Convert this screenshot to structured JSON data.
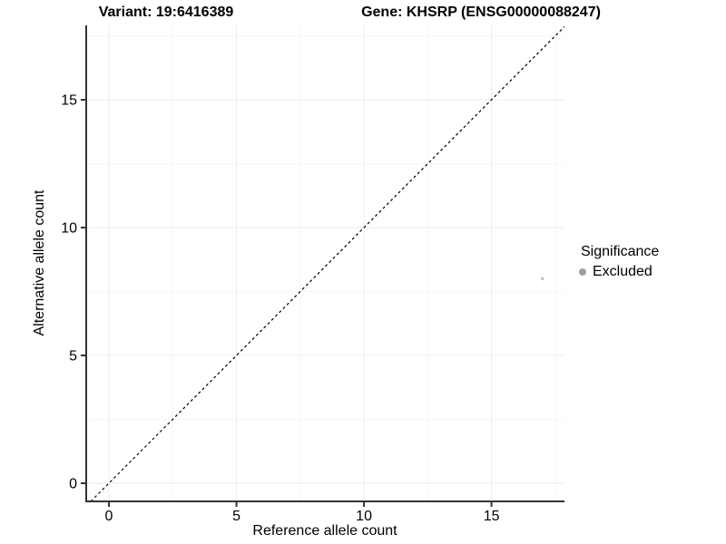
{
  "chart_data": {
    "type": "scatter",
    "title_left": "Variant: 19:6416389",
    "title_right": "Gene: KHSRP (ENSG00000088247)",
    "xlabel": "Reference allele count",
    "ylabel": "Alternative allele count",
    "xlim": [
      -0.89,
      17.86
    ],
    "ylim": [
      -0.71,
      17.91
    ],
    "x_ticks": [
      0,
      5,
      10,
      15
    ],
    "y_ticks": [
      0,
      5,
      10,
      15
    ],
    "x_minor_ticks": [
      2.5,
      7.5,
      12.5,
      17.5
    ],
    "y_minor_ticks": [
      2.5,
      7.5,
      12.5,
      17.5
    ],
    "grid": "major-and-minor",
    "identity_line": {
      "style": "dashed",
      "equation": "y = x"
    },
    "points": [
      {
        "x": 17,
        "y": 8,
        "significance": "Excluded"
      }
    ],
    "legend": {
      "title": "Significance",
      "position": "right",
      "items": [
        {
          "label": "Excluded",
          "color": "#9e9e9e"
        }
      ]
    },
    "colors": {
      "axis_line": "#333333",
      "tick_mark": "#333333",
      "tick_label": "#000000",
      "grid_major": "#ebebeb",
      "grid_minor": "#f5f5f5",
      "identity_line": "#000000",
      "point": "#c5c5c5",
      "background": "#ffffff"
    }
  }
}
